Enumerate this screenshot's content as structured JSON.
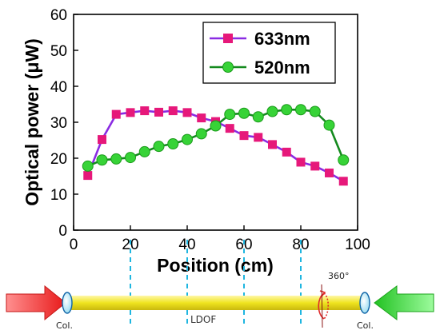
{
  "chart_data": {
    "type": "line",
    "xlabel": "Position (cm)",
    "ylabel": "Optical power (μW)",
    "xlim": [
      0,
      100
    ],
    "ylim": [
      0,
      60
    ],
    "xticks": [
      0,
      20,
      40,
      60,
      80,
      100
    ],
    "yticks": [
      0,
      10,
      20,
      30,
      40,
      50,
      60
    ],
    "grid": false,
    "legend_position": "top-right",
    "series": [
      {
        "name": "633nm",
        "color": "#e6187a",
        "line_color": "#8a2be2",
        "marker": "square",
        "x": [
          5,
          10,
          15,
          20,
          25,
          30,
          35,
          40,
          45,
          50,
          55,
          60,
          65,
          70,
          75,
          80,
          85,
          90,
          95
        ],
        "y": [
          15.2,
          25.2,
          32.2,
          32.7,
          33.2,
          32.8,
          33.2,
          32.7,
          31.2,
          30.2,
          28.3,
          26.3,
          25.8,
          23.8,
          21.7,
          18.9,
          17.8,
          15.9,
          13.6
        ]
      },
      {
        "name": "520nm",
        "color": "#37d337",
        "line_color": "#148a1e",
        "marker": "circle",
        "x": [
          5,
          10,
          15,
          20,
          25,
          30,
          35,
          40,
          45,
          50,
          55,
          60,
          65,
          70,
          75,
          80,
          85,
          90,
          95
        ],
        "y": [
          17.8,
          19.5,
          19.8,
          20.2,
          21.8,
          23.3,
          24.0,
          25.2,
          26.8,
          29.0,
          32.2,
          32.5,
          31.5,
          33.0,
          33.5,
          33.5,
          33.0,
          29.2,
          19.5
        ]
      }
    ]
  },
  "diagram": {
    "angle_label": "360°",
    "center_label": "LDOF",
    "left_label": "Col.",
    "right_label": "Col."
  },
  "colors": {
    "guide_lines": "#1fb6e0",
    "beam": "#f2ec2a",
    "left_arrow": "#e82020",
    "right_arrow": "#2bd22b",
    "rotation_arrow": "#e02a2a"
  }
}
